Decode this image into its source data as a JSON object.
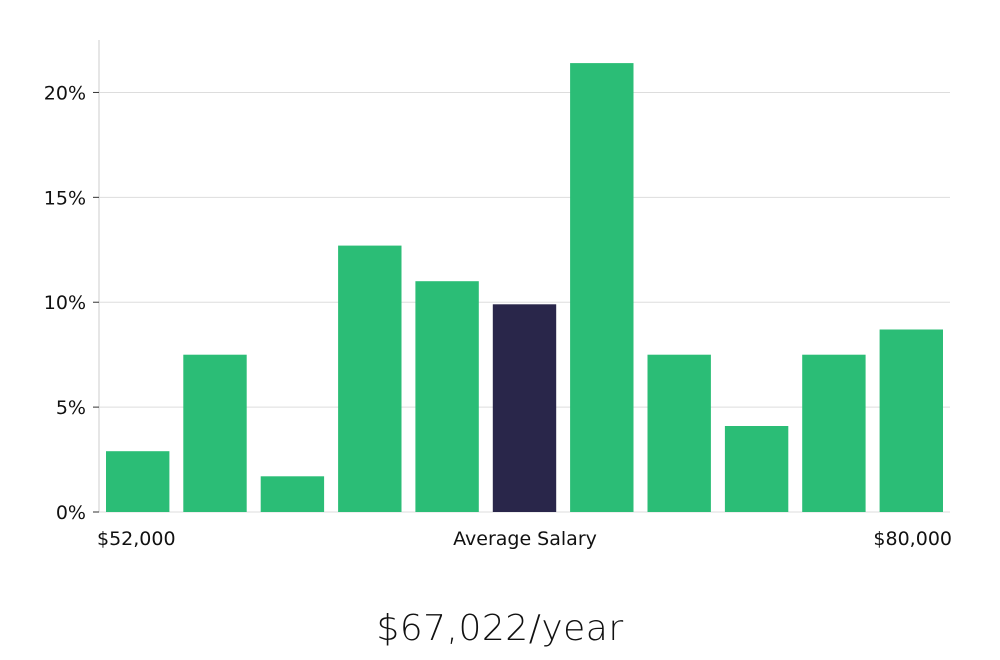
{
  "chart_data": {
    "type": "bar",
    "values": [
      2.9,
      7.5,
      1.7,
      12.7,
      11.0,
      9.9,
      21.4,
      7.5,
      4.1,
      7.5,
      8.7
    ],
    "highlight_index": 5,
    "ylim": [
      0,
      22.5
    ],
    "y_ticks": [
      0,
      5,
      10,
      15,
      20
    ],
    "y_tick_labels": [
      "0%",
      "5%",
      "10%",
      "15%",
      "20%"
    ],
    "x_range_min_label": "$52,000",
    "x_center_label": "Average Salary",
    "x_range_max_label": "$80,000",
    "grid": true,
    "colors": {
      "bar": "#2bbd76",
      "highlight": "#29264a",
      "grid": "#dddddd",
      "axis": "#cccccc"
    }
  },
  "summary": {
    "salary": "$67,022/year"
  }
}
